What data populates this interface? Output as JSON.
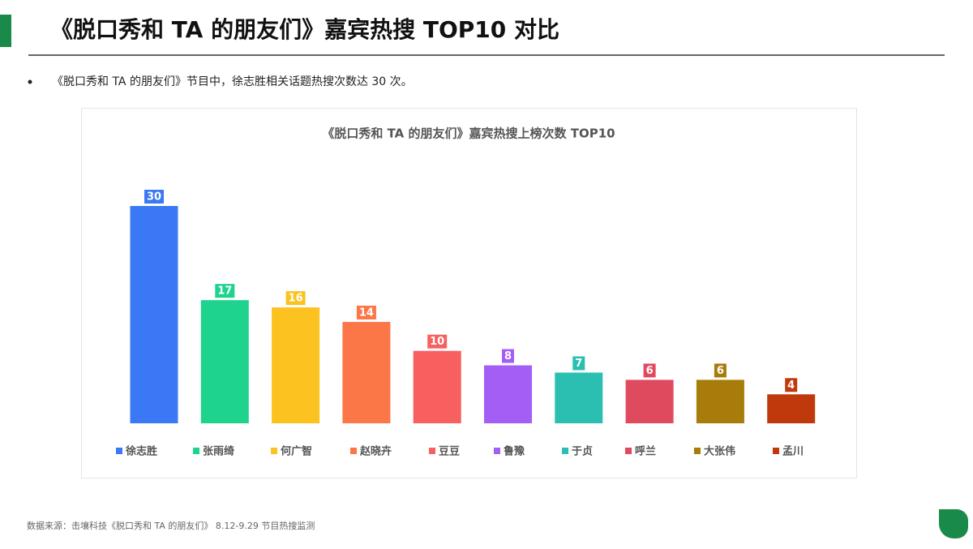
{
  "header": {
    "title": "《脱口秀和 TA 的朋友们》嘉宾热搜 TOP10 对比"
  },
  "bullet": "《脱口秀和 TA 的朋友们》节目中，徐志胜相关话题热搜次数达 30 次。",
  "chart_data": {
    "type": "bar",
    "title": "《脱口秀和 TA 的朋友们》嘉宾热搜上榜次数 TOP10",
    "categories": [
      "徐志胜",
      "张雨绮",
      "何广智",
      "赵晓卉",
      "豆豆",
      "鲁豫",
      "于贞",
      "呼兰",
      "大张伟",
      "孟川"
    ],
    "values": [
      30,
      17,
      16,
      14,
      10,
      8,
      7,
      6,
      6,
      4
    ],
    "colors": [
      "#3b78f5",
      "#1dd38e",
      "#fcc21f",
      "#fb7748",
      "#f86060",
      "#a35ef5",
      "#2bbfb1",
      "#e04a5f",
      "#a87c0a",
      "#c0390c"
    ]
  },
  "footer": {
    "source": "数据来源：击壤科技《脱口秀和 TA 的朋友们》 8.12-9.29  节目热搜监测"
  }
}
